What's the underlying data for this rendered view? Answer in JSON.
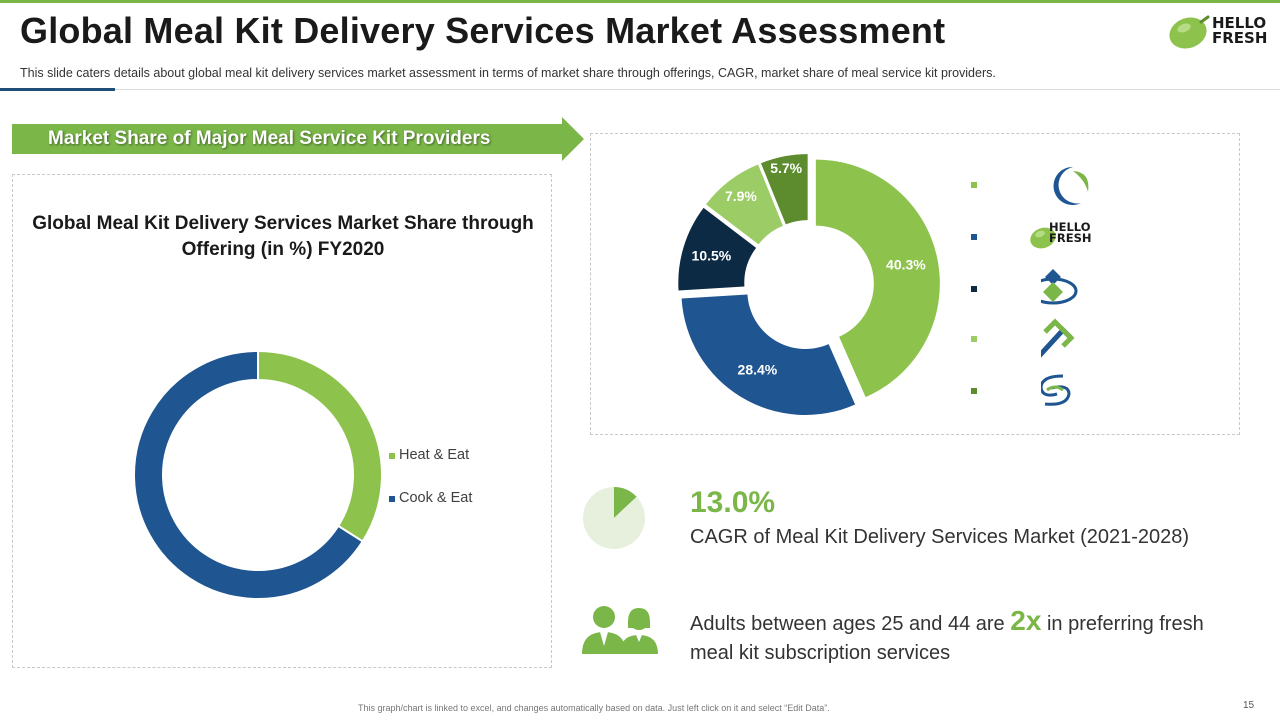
{
  "header": {
    "title": "Global Meal Kit Delivery Services Market Assessment",
    "subtitle": "This slide caters details about global meal kit delivery services market assessment in terms of market share through offerings, CAGR, market share of meal service kit providers.",
    "logo": {
      "line1": "HELLO",
      "line2": "FRESH"
    }
  },
  "banner": {
    "label": "Market Share of Major Meal Service Kit Providers"
  },
  "colors": {
    "green": "#7ab648",
    "light_green": "#9ccc65",
    "dark_green": "#5d8c2f",
    "blue": "#1f5590",
    "navy": "#0d2a45",
    "pale_green": "#e6f0dc"
  },
  "chart_data": [
    {
      "type": "pie",
      "variant": "donut",
      "title": "Global Meal Kit Delivery Services Market Share through Offering (in %) FY2020",
      "categories": [
        "Heat & Eat",
        "Cook & Eat"
      ],
      "values": [
        34,
        66
      ],
      "colors": [
        "#8dc24c",
        "#1f5590"
      ],
      "legend_position": "right",
      "data_labels": false
    },
    {
      "type": "pie",
      "variant": "exploded donut",
      "title": "",
      "categories": [
        "Provider 1",
        "HelloFresh",
        "Provider 3",
        "Provider 4",
        "Provider 5"
      ],
      "values": [
        40.3,
        28.4,
        10.5,
        7.9,
        5.7
      ],
      "labels": [
        "40.3%",
        "28.4%",
        "10.5%",
        "7.9%",
        "5.7%"
      ],
      "colors": [
        "#8dc24c",
        "#1f5590",
        "#0d2a45",
        "#9ccc65",
        "#5d8c2f"
      ],
      "legend_position": "right"
    },
    {
      "type": "pie",
      "title": "",
      "categories": [
        "CAGR",
        "Rest"
      ],
      "values": [
        13,
        87
      ],
      "colors": [
        "#7ab648",
        "#e6f0dc"
      ]
    }
  ],
  "providers": [
    {
      "name": "provider-1",
      "icon": "crescent-logo-icon"
    },
    {
      "name": "hellofresh",
      "icon": "hellofresh-logo-icon",
      "line1": "HELLO",
      "line2": "FRESH"
    },
    {
      "name": "provider-3",
      "icon": "diamond-logo-icon"
    },
    {
      "name": "provider-4",
      "icon": "zigzag-logo-icon"
    },
    {
      "name": "provider-5",
      "icon": "swirl-logo-icon"
    }
  ],
  "stats": {
    "cagr_value": "13.0%",
    "cagr_label": "CAGR of Meal Kit Delivery Services Market (2021-2028)",
    "adults_prefix": "Adults between ages 25 and 44 are",
    "adults_highlight": "2x",
    "adults_suffix": "in preferring fresh meal kit subscription services"
  },
  "footer": {
    "note": "This graph/chart is linked to excel, and changes automatically based on data. Just left click on it and select “Edit Data”.",
    "page_number": "15"
  }
}
